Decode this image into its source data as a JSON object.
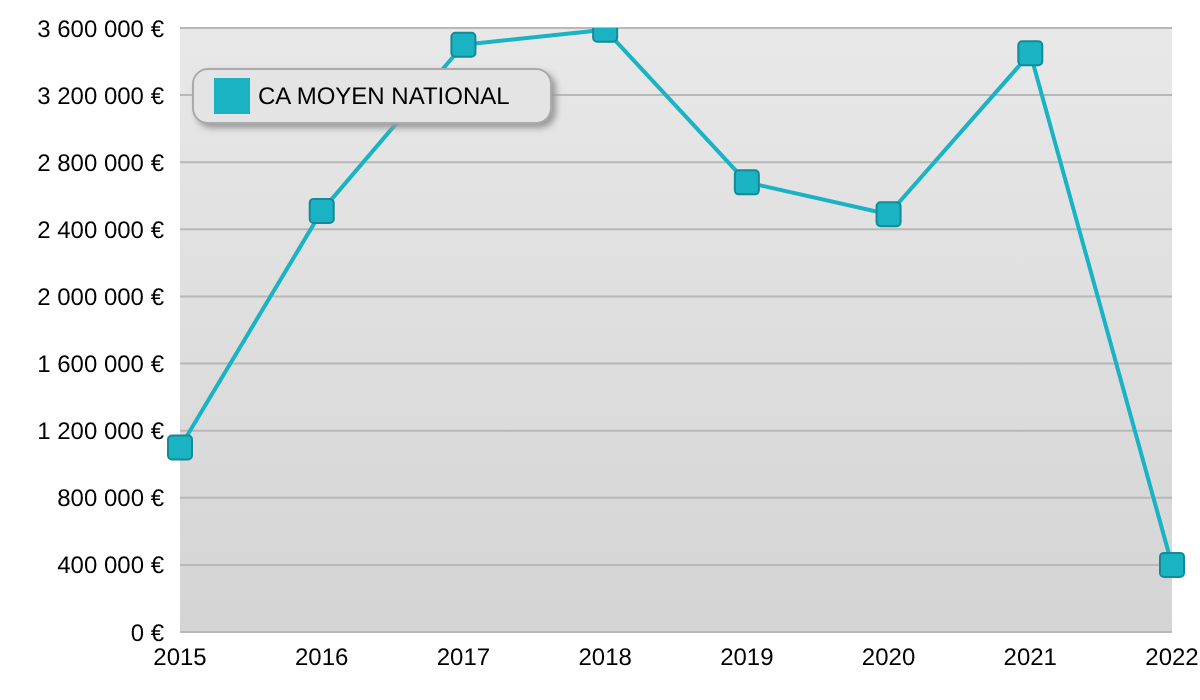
{
  "chart_data": {
    "type": "line",
    "categories": [
      "2015",
      "2016",
      "2017",
      "2018",
      "2019",
      "2020",
      "2021",
      "2022"
    ],
    "series": [
      {
        "name": "CA MOYEN NATIONAL",
        "color": "#1ab3c3",
        "values": [
          1100000,
          2510000,
          3500000,
          3590000,
          2680000,
          2490000,
          3450000,
          400000
        ]
      }
    ],
    "ylim": [
      0,
      3600000
    ],
    "yticks": [
      {
        "value": 0,
        "label": "0 €"
      },
      {
        "value": 400000,
        "label": "400 000 €"
      },
      {
        "value": 800000,
        "label": "800 000 €"
      },
      {
        "value": 1200000,
        "label": "1 200 000 €"
      },
      {
        "value": 1600000,
        "label": "1 600 000 €"
      },
      {
        "value": 2000000,
        "label": "2 000 000 €"
      },
      {
        "value": 2400000,
        "label": "2 400 000 €"
      },
      {
        "value": 2800000,
        "label": "2 800 000 €"
      },
      {
        "value": 3200000,
        "label": "3 200 000 €"
      },
      {
        "value": 3600000,
        "label": "3 600 000 €"
      }
    ],
    "grid": "y",
    "legend": "top left",
    "marker": "square",
    "line_style": "solid"
  }
}
